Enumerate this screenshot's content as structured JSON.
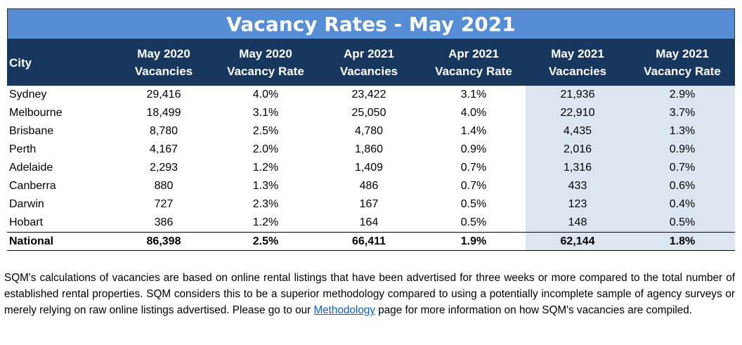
{
  "title": "Vacancy Rates - May 2021",
  "table": {
    "header": [
      [
        "City"
      ],
      [
        "May 2020",
        "Vacancies"
      ],
      [
        "May 2020",
        "Vacancy Rate"
      ],
      [
        "Apr 2021",
        "Vacancies"
      ],
      [
        "Apr 2021",
        "Vacancy Rate"
      ],
      [
        "May 2021",
        "Vacancies"
      ],
      [
        "May 2021",
        "Vacancy Rate"
      ]
    ],
    "rows": [
      [
        "Sydney",
        "29,416",
        "4.0%",
        "23,422",
        "3.1%",
        "21,936",
        "2.9%"
      ],
      [
        "Melbourne",
        "18,499",
        "3.1%",
        "25,050",
        "4.0%",
        "22,910",
        "3.7%"
      ],
      [
        "Brisbane",
        "8,780",
        "2.5%",
        "4,780",
        "1.4%",
        "4,435",
        "1.3%"
      ],
      [
        "Perth",
        "4,167",
        "2.0%",
        "1,860",
        "0.9%",
        "2,016",
        "0.9%"
      ],
      [
        "Adelaide",
        "2,293",
        "1.2%",
        "1,409",
        "0.7%",
        "1,316",
        "0.7%"
      ],
      [
        "Canberra",
        "880",
        "1.3%",
        "486",
        "0.7%",
        "433",
        "0.6%"
      ],
      [
        "Darwin",
        "727",
        "2.3%",
        "167",
        "0.5%",
        "123",
        "0.4%"
      ],
      [
        "Hobart",
        "386",
        "1.2%",
        "164",
        "0.5%",
        "148",
        "0.5%"
      ]
    ],
    "total": [
      "National",
      "86,398",
      "2.5%",
      "66,411",
      "1.9%",
      "62,144",
      "1.8%"
    ]
  },
  "footnote": {
    "before": "SQM's calculations of vacancies are based on online rental listings that have been advertised for three weeks or more compared to the total number of established rental properties. SQM considers this to be a superior methodology compared to using a potentially incomplete sample of agency surveys or merely relying on raw online listings advertised. Please go to our",
    "link": "Methodology",
    "after": "page for more information on how SQM's vacancies are compiled."
  }
}
